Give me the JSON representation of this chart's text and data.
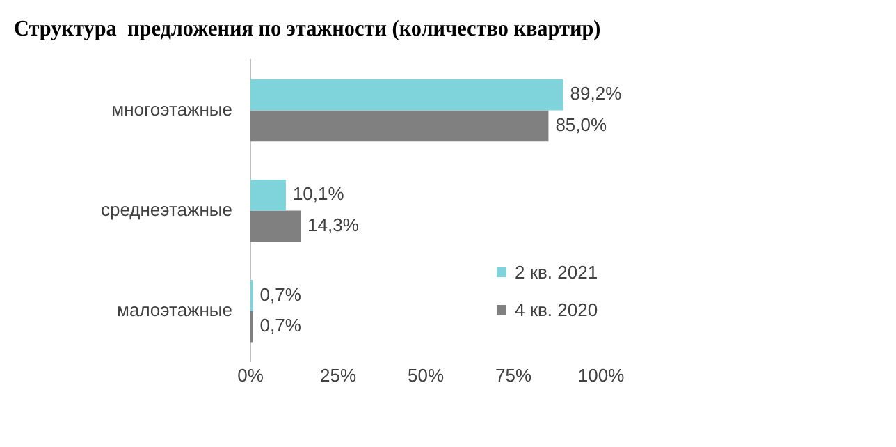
{
  "chart_data": {
    "type": "bar",
    "orientation": "horizontal",
    "title": "Структура  предложения по этажности (количество квартир)",
    "categories": [
      "многоэтажные",
      "среднеэтажные",
      "малоэтажные"
    ],
    "series": [
      {
        "name": "2 кв. 2021",
        "color": "#7fd3da",
        "values": [
          89.2,
          10.1,
          0.7
        ],
        "value_labels": [
          "89,2%",
          "10,1%",
          "0,7%"
        ]
      },
      {
        "name": "4 кв. 2020",
        "color": "#808080",
        "values": [
          85.0,
          14.3,
          0.7
        ],
        "value_labels": [
          "85,0%",
          "14,3%",
          "0,7%"
        ]
      }
    ],
    "xlim": [
      0,
      100
    ],
    "xticks": [
      {
        "value": 0,
        "label": "0%"
      },
      {
        "value": 25,
        "label": "25%"
      },
      {
        "value": 50,
        "label": "50%"
      },
      {
        "value": 75,
        "label": "75%"
      },
      {
        "value": 100,
        "label": "100%"
      }
    ],
    "grid": false,
    "legend": "right"
  }
}
